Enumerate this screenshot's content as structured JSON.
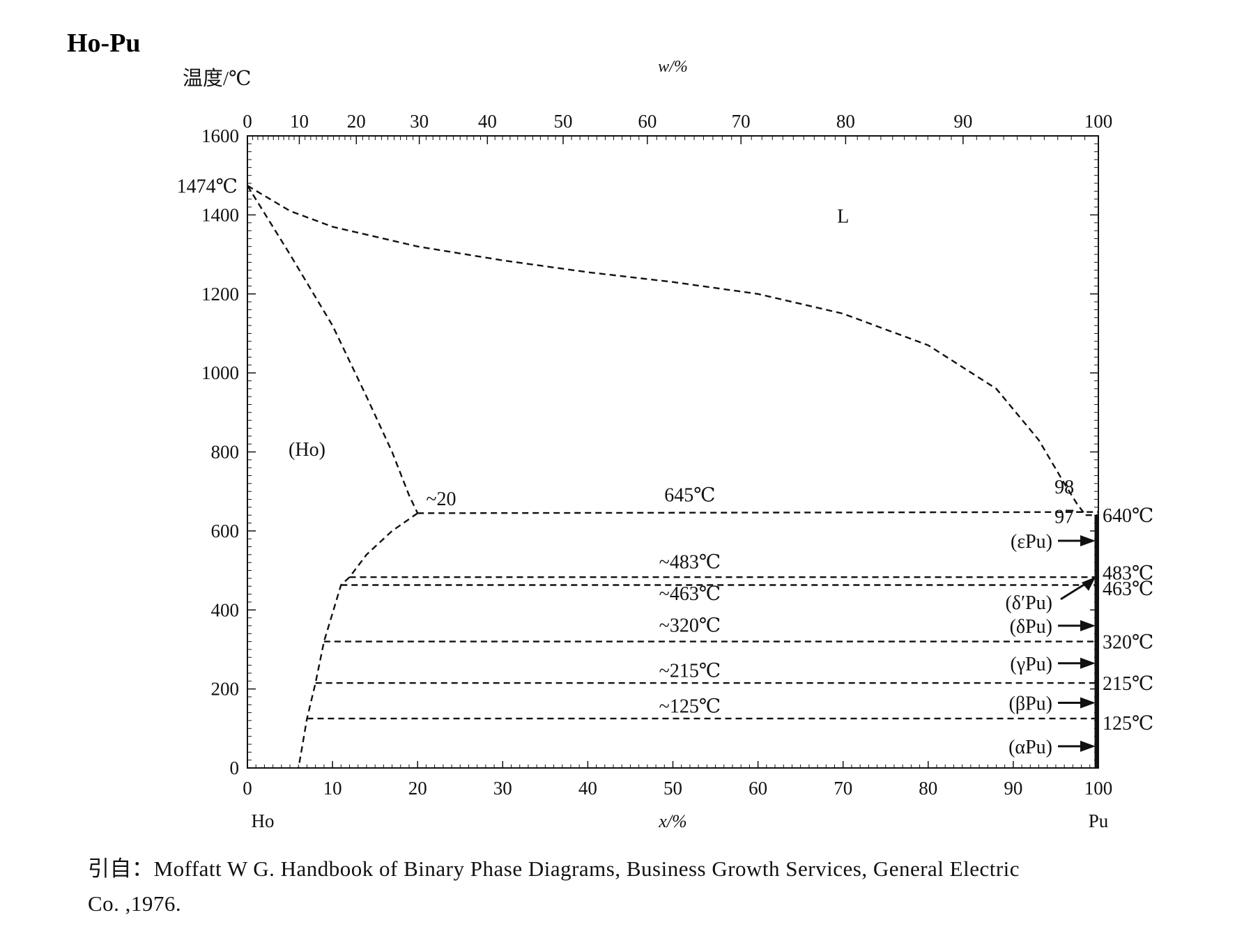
{
  "title": "Ho-Pu",
  "citation": {
    "line1": "引自：Moffatt W G. Handbook of Binary Phase Diagrams, Business Growth Services, General Electric",
    "line2": "Co. ,1976."
  },
  "chart_data": {
    "type": "line",
    "title": "Ho-Pu",
    "ylabel": "温度/℃",
    "xlabel": "x/%",
    "x2label": "w/%",
    "xlim": [
      0,
      100
    ],
    "ylim": [
      0,
      1600
    ],
    "x_ticks": [
      "0",
      "10",
      "20",
      "30",
      "40",
      "50",
      "60",
      "70",
      "80",
      "90",
      "100"
    ],
    "y_ticks": [
      "0",
      "200",
      "400",
      "600",
      "800",
      "1000",
      "1200",
      "1400",
      "1600"
    ],
    "top_ticks": [
      {
        "label": "0",
        "x": 0
      },
      {
        "label": "10",
        "x": 6.1
      },
      {
        "label": "20",
        "x": 12.8
      },
      {
        "label": "30",
        "x": 20.2
      },
      {
        "label": "40",
        "x": 28.2
      },
      {
        "label": "50",
        "x": 37.1
      },
      {
        "label": "60",
        "x": 47.0
      },
      {
        "label": "70",
        "x": 58.0
      },
      {
        "label": "80",
        "x": 70.3
      },
      {
        "label": "90",
        "x": 84.1
      },
      {
        "label": "100",
        "x": 100
      }
    ],
    "end_labels": {
      "left": "Ho",
      "right": "Pu"
    },
    "series": [
      {
        "values": [
          [
            0,
            1474
          ],
          [
            5,
            1410
          ],
          [
            10,
            1370
          ],
          [
            20,
            1320
          ],
          [
            30,
            1285
          ],
          [
            40,
            1255
          ],
          [
            50,
            1230
          ],
          [
            60,
            1200
          ],
          [
            70,
            1150
          ],
          [
            80,
            1070
          ],
          [
            88,
            960
          ],
          [
            93,
            830
          ],
          [
            96,
            720
          ],
          [
            97.5,
            668
          ],
          [
            98.5,
            640
          ]
        ]
      },
      {
        "values": [
          [
            0,
            1474
          ],
          [
            5,
            1300
          ],
          [
            10,
            1120
          ],
          [
            14,
            940
          ],
          [
            17,
            800
          ],
          [
            19,
            690
          ],
          [
            20,
            645
          ]
        ]
      },
      {
        "values": [
          [
            20,
            645
          ],
          [
            17,
            600
          ],
          [
            14,
            540
          ],
          [
            12,
            483
          ],
          [
            11,
            463
          ],
          [
            9,
            320
          ],
          [
            8,
            215
          ],
          [
            7,
            125
          ],
          [
            6,
            0
          ]
        ]
      },
      {
        "values": [
          [
            20,
            645
          ],
          [
            100,
            648
          ]
        ]
      },
      {
        "values": [
          [
            12,
            483
          ],
          [
            100,
            483
          ]
        ]
      },
      {
        "values": [
          [
            11,
            463
          ],
          [
            100,
            463
          ]
        ]
      },
      {
        "values": [
          [
            9,
            320
          ],
          [
            100,
            320
          ]
        ]
      },
      {
        "values": [
          [
            8,
            215
          ],
          [
            100,
            215
          ]
        ]
      },
      {
        "values": [
          [
            7,
            125
          ],
          [
            100,
            125
          ]
        ]
      },
      {
        "values": [
          [
            98.5,
            640
          ],
          [
            100,
            640
          ]
        ]
      }
    ],
    "annotations": [
      {
        "text": "1474℃",
        "x": 0,
        "y": 1474
      },
      {
        "text": "L",
        "x": 70,
        "y": 1380
      },
      {
        "text": "(Ho)",
        "x": 7,
        "y": 790
      },
      {
        "text": "~20",
        "x": 21,
        "y": 665
      },
      {
        "text": "645℃",
        "x": 52,
        "y": 675
      },
      {
        "text": "98",
        "x": 96,
        "y": 695
      },
      {
        "text": "97",
        "x": 96,
        "y": 620
      },
      {
        "text": "~483℃",
        "x": 52,
        "y": 505
      },
      {
        "text": "~463℃",
        "x": 52,
        "y": 425
      },
      {
        "text": "~320℃",
        "x": 52,
        "y": 345
      },
      {
        "text": "~215℃",
        "x": 52,
        "y": 230
      },
      {
        "text": "~125℃",
        "x": 52,
        "y": 140
      }
    ],
    "right_labels": [
      "640℃",
      "483℃",
      "463℃",
      "320℃",
      "215℃",
      "125℃"
    ],
    "phase_labels": [
      "(εPu)",
      "(δ′Pu)",
      "(δPu)",
      "(γPu)",
      "(βPu)",
      "(αPu)"
    ]
  }
}
